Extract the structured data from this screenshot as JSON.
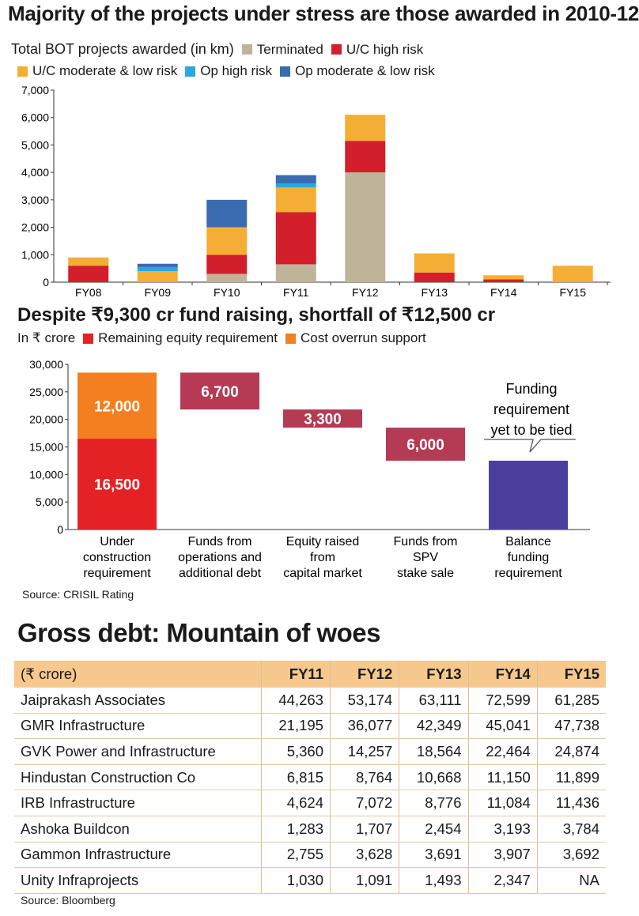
{
  "chart1": {
    "title": "Majority of the projects under stress are those awarded in 2010-12",
    "subtitle": "Total BOT projects awarded (in km)",
    "legend": [
      {
        "name": "Terminated",
        "color": "#bfb49a"
      },
      {
        "name": "U/C high risk",
        "color": "#d31f2b"
      },
      {
        "name": "U/C moderate & low risk",
        "color": "#f5ae35"
      },
      {
        "name": "Op high risk",
        "color": "#29a8df"
      },
      {
        "name": "Op moderate & low risk",
        "color": "#3a6ab0"
      }
    ],
    "yticks": [
      "0",
      "1,000",
      "2,000",
      "3,000",
      "4,000",
      "5,000",
      "6,000",
      "7,000"
    ]
  },
  "chart2": {
    "title": "Despite ₹9,300 cr fund raising, shortfall of ₹12,500 cr",
    "unit_label": "In ₹ crore",
    "legend": [
      {
        "name": "Remaining equity requirement",
        "color": "#e42226"
      },
      {
        "name": "Cost overrun support",
        "color": "#f47f20"
      }
    ],
    "yticks": [
      "0",
      "5,000",
      "10,000",
      "15,000",
      "20,000",
      "25,000",
      "30,000"
    ],
    "callout": [
      "Funding",
      "requirement",
      "yet to be tied"
    ],
    "category_labels": [
      [
        "Under",
        "construction",
        "requirement"
      ],
      [
        "Funds from",
        "operations and",
        "additional debt"
      ],
      [
        "Equity raised",
        "from",
        "capital market"
      ],
      [
        "Funds from",
        "SPV",
        "stake sale"
      ],
      [
        "Balance",
        "funding",
        "requirement"
      ]
    ],
    "bar_labels": [
      "16,500",
      "12,000",
      "6,700",
      "3,300",
      "6,000"
    ],
    "source": "Source: CRISIL Rating"
  },
  "chart_data": [
    {
      "type": "bar",
      "stacked": true,
      "categories": [
        "FY08",
        "FY09",
        "FY10",
        "FY11",
        "FY12",
        "FY13",
        "FY14",
        "FY15"
      ],
      "series": [
        {
          "name": "Terminated",
          "values": [
            0,
            0,
            300,
            650,
            4000,
            0,
            0,
            0
          ]
        },
        {
          "name": "U/C high risk",
          "values": [
            600,
            0,
            700,
            1900,
            1150,
            350,
            100,
            0
          ]
        },
        {
          "name": "U/C moderate & low risk",
          "values": [
            300,
            400,
            1000,
            900,
            950,
            700,
            150,
            600
          ]
        },
        {
          "name": "Op high risk",
          "values": [
            0,
            150,
            0,
            150,
            0,
            0,
            0,
            0
          ]
        },
        {
          "name": "Op moderate & low risk",
          "values": [
            0,
            120,
            1000,
            300,
            0,
            0,
            0,
            0
          ]
        }
      ],
      "ylim": [
        0,
        7000
      ]
    },
    {
      "type": "bar",
      "waterfall": true,
      "categories": [
        "Under construction requirement",
        "Funds from operations and additional debt",
        "Equity raised from capital market",
        "Funds from SPV stake sale",
        "Balance funding requirement"
      ],
      "series": [
        {
          "name": "Remaining equity requirement",
          "values": [
            16500,
            null,
            null,
            null,
            null
          ]
        },
        {
          "name": "Cost overrun support",
          "values": [
            12000,
            null,
            null,
            null,
            null
          ]
        }
      ],
      "steps": [
        {
          "value": 6700,
          "from": 28500,
          "to": 21800
        },
        {
          "value": 3300,
          "from": 21800,
          "to": 18500
        },
        {
          "value": 6000,
          "from": 18500,
          "to": 12500
        },
        {
          "value": 12500,
          "from": 12500,
          "to": 0
        }
      ],
      "ylim": [
        0,
        30000
      ]
    }
  ],
  "table": {
    "title": "Gross debt: Mountain of woes",
    "header": [
      "(₹ crore)",
      "FY11",
      "FY12",
      "FY13",
      "FY14",
      "FY15"
    ],
    "rows": [
      [
        "Jaiprakash Associates",
        "44,263",
        "53,174",
        "63,111",
        "72,599",
        "61,285"
      ],
      [
        "GMR Infrastructure",
        "21,195",
        "36,077",
        "42,349",
        "45,041",
        "47,738"
      ],
      [
        "GVK Power and Infrastructure",
        "5,360",
        "14,257",
        "18,564",
        "22,464",
        "24,874"
      ],
      [
        "Hindustan Construction Co",
        "6,815",
        "8,764",
        "10,668",
        "11,150",
        "11,899"
      ],
      [
        "IRB Infrastructure",
        "4,624",
        "7,072",
        "8,776",
        "11,084",
        "11,436"
      ],
      [
        "Ashoka Buildcon",
        "1,283",
        "1,707",
        "2,454",
        "3,193",
        "3,784"
      ],
      [
        "Gammon Infrastructure",
        "2,755",
        "3,628",
        "3,691",
        "3,907",
        "3,692"
      ],
      [
        "Unity Infraprojects",
        "1,030",
        "1,091",
        "1,493",
        "2,347",
        "NA"
      ]
    ],
    "source": "Source: Bloomberg"
  }
}
